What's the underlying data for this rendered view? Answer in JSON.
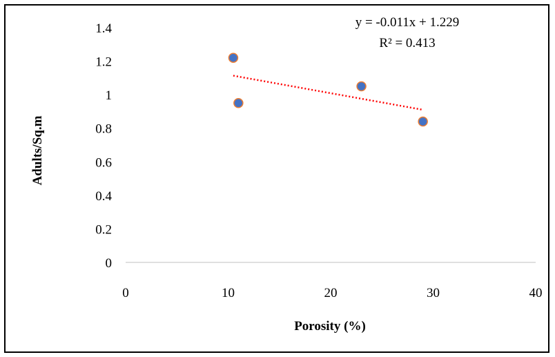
{
  "chart_data": {
    "type": "scatter",
    "xlabel": "Porosity (%)",
    "ylabel": "Adults/Sq.m",
    "xlim": [
      0,
      40
    ],
    "ylim": [
      0,
      1.4
    ],
    "x_ticks": [
      "0",
      "10",
      "20",
      "30",
      "40"
    ],
    "y_ticks": [
      "0",
      "0.2",
      "0.4",
      "0.6",
      "0.8",
      "1",
      "1.2",
      "1.4"
    ],
    "grid": false,
    "legend": "none",
    "series": [
      {
        "x": [
          10.5,
          11.0,
          23.0,
          29.0
        ],
        "y": [
          1.22,
          0.95,
          1.05,
          0.84
        ]
      }
    ],
    "trendline": {
      "type": "linear",
      "slope": -0.011,
      "intercept": 1.229,
      "x_range": [
        10.5,
        29.0
      ],
      "equation_label": "y = -0.011x + 1.229",
      "r2_label": "R² = 0.413"
    },
    "colors": {
      "marker_fill": "#4472C4",
      "marker_edge": "#ED7D31",
      "trendline": "#FF0000",
      "axis": "#BFBFBF"
    }
  }
}
